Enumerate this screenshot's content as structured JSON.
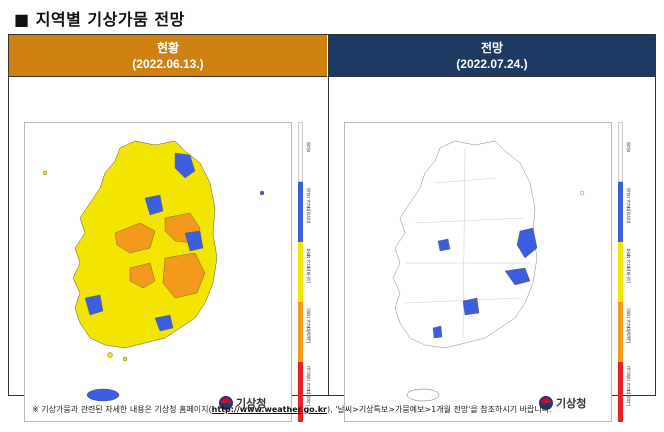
{
  "title": "■ 지역별 기상가뭄 전망",
  "panels": [
    {
      "header": "현황",
      "date": "(2022.06.13.)",
      "color": "#d08114"
    },
    {
      "header": "전망",
      "date": "(2022.07.24.)",
      "color": "#1c3a63"
    }
  ],
  "legend": {
    "items": [
      {
        "label": "정상",
        "color": "#ffffff"
      },
      {
        "label": "약한 가뭄(관심)",
        "color": "#3b5fe0"
      },
      {
        "label": "보통 가뭄(주의)",
        "color": "#f2e600"
      },
      {
        "label": "심한 가뭄(경계)",
        "color": "#f39a1c"
      },
      {
        "label": "극심한 가뭄(심각)",
        "color": "#e8202a"
      }
    ]
  },
  "logo_text": "기상청",
  "footnote": {
    "prefix": "※ 기상가뭄과 관련된 자세한 내용은 기상청 홈페이지(",
    "link": "http://www.weather.go.kr",
    "suffix": "), '날씨>기상특보>가뭄예보>1개월 전망'을 참조하시기 바랍니다."
  }
}
